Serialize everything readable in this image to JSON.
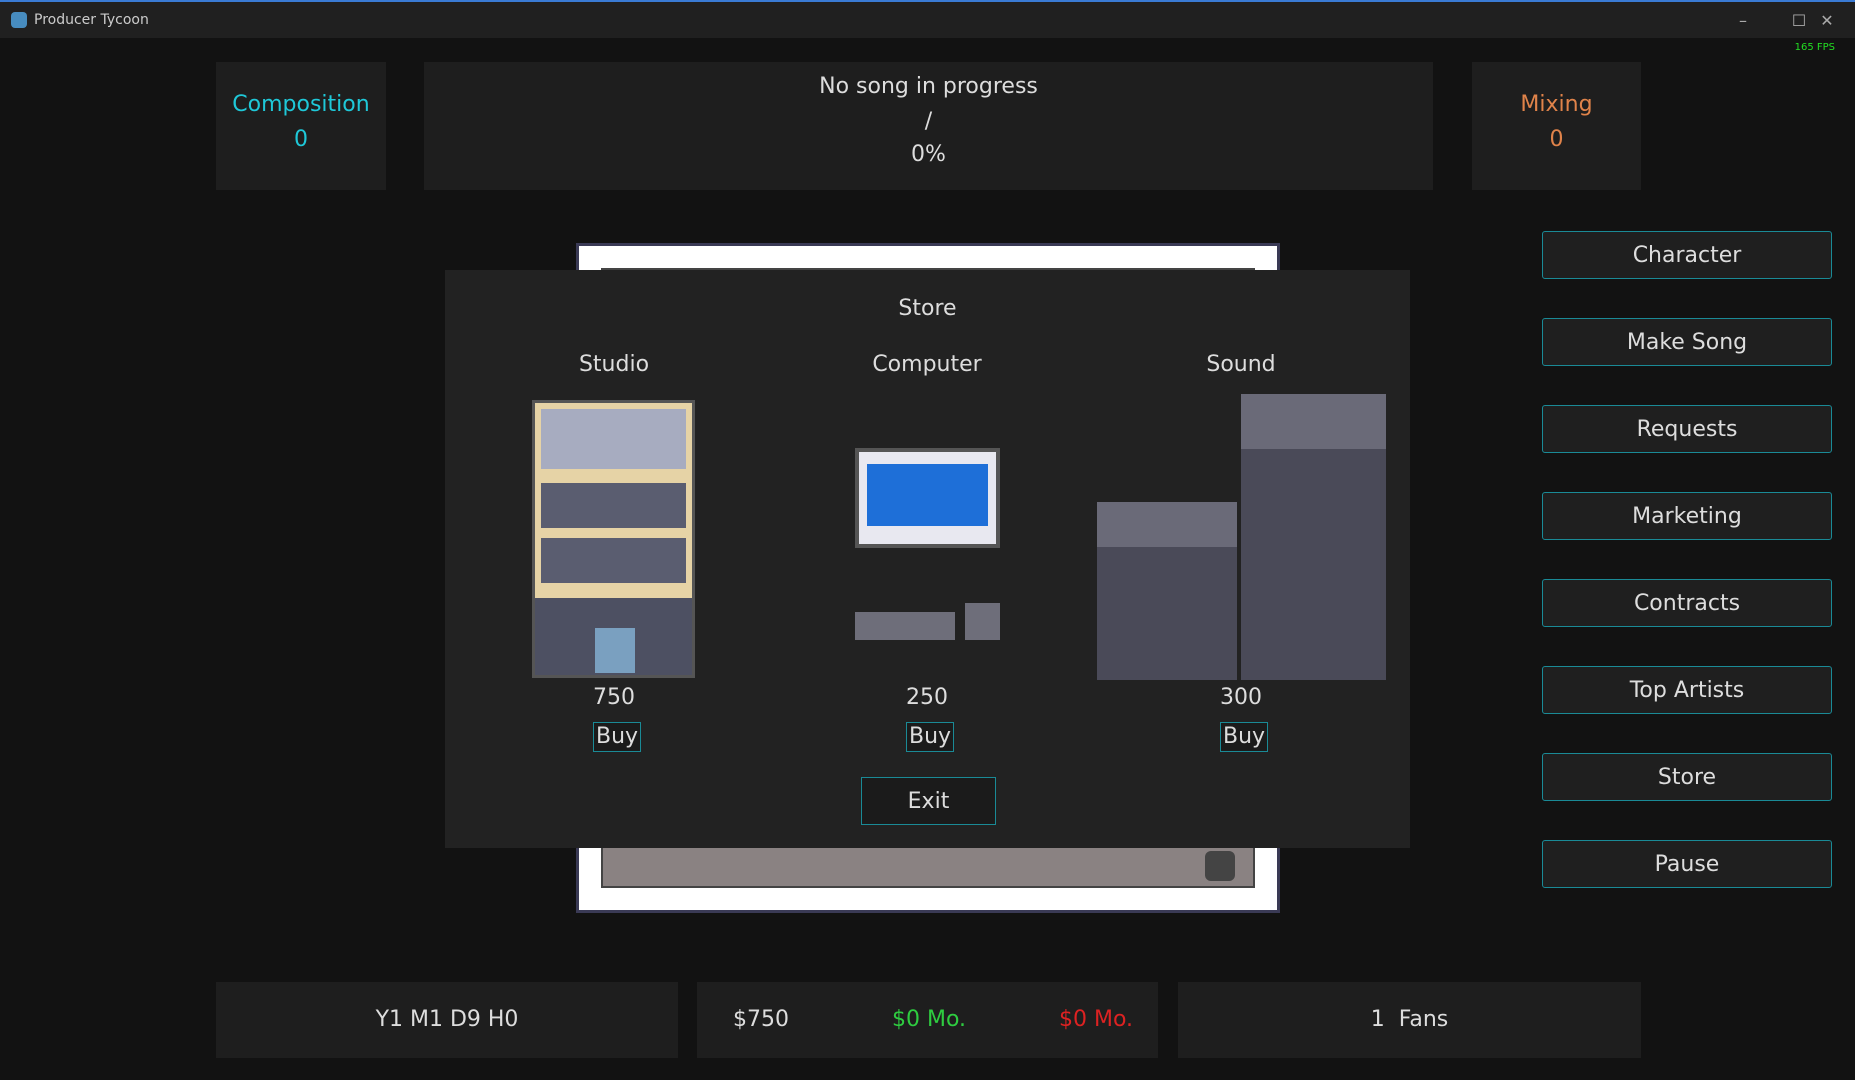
{
  "window": {
    "title": "Producer Tycoon",
    "minimize": "–",
    "maximize": "☐",
    "close": "✕",
    "fps": "165 FPS"
  },
  "composition": {
    "label": "Composition",
    "value": "0",
    "color": "#1fc8d8"
  },
  "progress": {
    "song": "No song in progress",
    "separator": "/",
    "percent": "0%"
  },
  "mixing": {
    "label": "Mixing",
    "value": "0",
    "color": "#e0834a"
  },
  "menu": [
    "Character",
    "Make Song",
    "Requests",
    "Marketing",
    "Contracts",
    "Top Artists",
    "Store",
    "Pause"
  ],
  "store": {
    "title": "Store",
    "items": [
      {
        "name": "Studio",
        "price": "750",
        "buy": "Buy"
      },
      {
        "name": "Computer",
        "price": "250",
        "buy": "Buy"
      },
      {
        "name": "Sound",
        "price": "300",
        "buy": "Buy"
      }
    ],
    "exit": "Exit"
  },
  "status": {
    "date": "Y1 M1 D9 H0",
    "money": "$750",
    "income": "$0 Mo.",
    "income_color": "#2ecc40",
    "expenses": "$0 Mo.",
    "expenses_color": "#dd2222",
    "fans": "1  Fans"
  }
}
